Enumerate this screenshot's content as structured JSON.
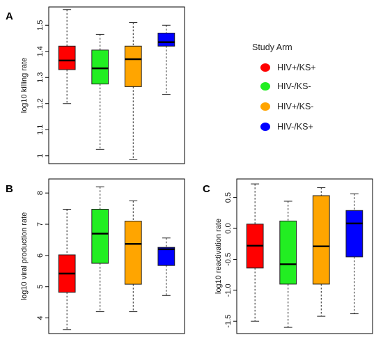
{
  "legend": {
    "title": "Study Arm",
    "items": [
      {
        "label": "HIV+/KS+",
        "color": "#ff0000"
      },
      {
        "label": "HIV-/KS-",
        "color": "#22ee22"
      },
      {
        "label": "HIV+/KS-",
        "color": "#ffa500"
      },
      {
        "label": "HIV-/KS+",
        "color": "#0000ff"
      }
    ]
  },
  "chart_data": [
    {
      "type": "box",
      "panel": "A",
      "ylabel": "log10 killing rate",
      "ylim": [
        0.97,
        1.57
      ],
      "yticks": [
        1,
        1.1,
        1.2,
        1.3,
        1.4,
        1.5
      ],
      "ytick_labels": [
        "1",
        "1.1",
        "1.2",
        "1.3",
        "1.4",
        "1.5"
      ],
      "groups": [
        {
          "name": "HIV+/KS+",
          "color": "#ff0000",
          "min": 1.2,
          "q1": 1.33,
          "median": 1.365,
          "q3": 1.42,
          "max": 1.56
        },
        {
          "name": "HIV-/KS-",
          "color": "#22ee22",
          "min": 1.025,
          "q1": 1.275,
          "median": 1.335,
          "q3": 1.405,
          "max": 1.465
        },
        {
          "name": "HIV+/KS-",
          "color": "#ffa500",
          "min": 0.985,
          "q1": 1.265,
          "median": 1.37,
          "q3": 1.42,
          "max": 1.51
        },
        {
          "name": "HIV-/KS+",
          "color": "#0000ff",
          "min": 1.235,
          "q1": 1.42,
          "median": 1.435,
          "q3": 1.47,
          "max": 1.5
        }
      ]
    },
    {
      "type": "box",
      "panel": "B",
      "ylabel": "log10 viral production rate",
      "ylim": [
        3.5,
        8.45
      ],
      "yticks": [
        4,
        5,
        6,
        7,
        8
      ],
      "ytick_labels": [
        "4",
        "5",
        "6",
        "7",
        "8"
      ],
      "groups": [
        {
          "name": "HIV+/KS+",
          "color": "#ff0000",
          "min": 3.62,
          "q1": 4.82,
          "median": 5.42,
          "q3": 6.02,
          "max": 7.48
        },
        {
          "name": "HIV-/KS-",
          "color": "#22ee22",
          "min": 4.2,
          "q1": 5.75,
          "median": 6.7,
          "q3": 7.48,
          "max": 8.2
        },
        {
          "name": "HIV+/KS-",
          "color": "#ffa500",
          "min": 4.2,
          "q1": 5.08,
          "median": 6.37,
          "q3": 7.1,
          "max": 7.75
        },
        {
          "name": "HIV-/KS+",
          "color": "#0000ff",
          "min": 4.72,
          "q1": 5.68,
          "median": 6.2,
          "q3": 6.26,
          "max": 6.56
        }
      ]
    },
    {
      "type": "box",
      "panel": "C",
      "ylabel": "log10 reactivation rate",
      "ylim": [
        -1.7,
        0.8
      ],
      "yticks": [
        -1.5,
        -1.0,
        -0.5,
        0.0,
        0.5
      ],
      "ytick_labels": [
        "-1.5",
        "-1.0",
        "-0.5",
        "0.0",
        "0.5"
      ],
      "groups": [
        {
          "name": "HIV+/KS+",
          "color": "#ff0000",
          "min": -1.5,
          "q1": -0.64,
          "median": -0.28,
          "q3": 0.07,
          "max": 0.72
        },
        {
          "name": "HIV-/KS-",
          "color": "#22ee22",
          "min": -1.6,
          "q1": -0.9,
          "median": -0.58,
          "q3": 0.12,
          "max": 0.44
        },
        {
          "name": "HIV+/KS-",
          "color": "#ffa500",
          "min": -1.42,
          "q1": -0.9,
          "median": -0.29,
          "q3": 0.53,
          "max": 0.66
        },
        {
          "name": "HIV-/KS+",
          "color": "#0000ff",
          "min": -1.38,
          "q1": -0.46,
          "median": 0.08,
          "q3": 0.29,
          "max": 0.56
        }
      ]
    }
  ]
}
